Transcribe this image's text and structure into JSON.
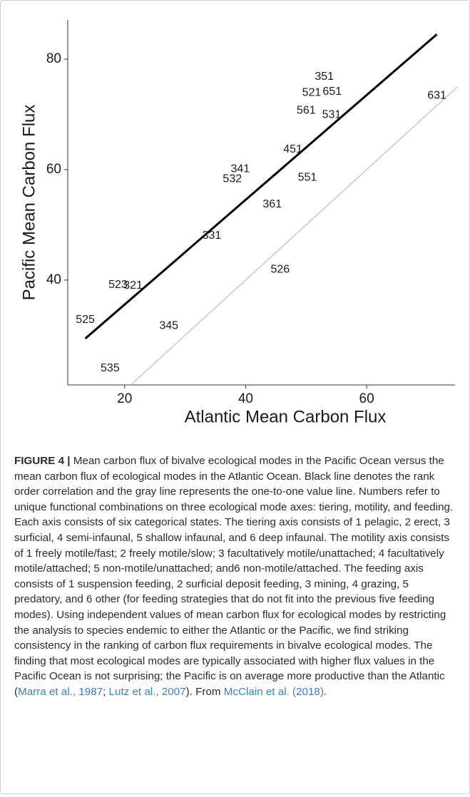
{
  "chart_data": {
    "type": "text-scatter",
    "xlabel": "Atlantic Mean Carbon Flux",
    "ylabel": "Pacific Mean Carbon Flux",
    "xlim": [
      10.6,
      74.6
    ],
    "ylim": [
      21,
      87.1
    ],
    "xticks": [
      20,
      40,
      60
    ],
    "yticks": [
      40,
      60,
      80
    ],
    "points": {
      "labels": [
        "351",
        "521",
        "651",
        "561",
        "531",
        "631",
        "451",
        "341",
        "532",
        "551",
        "361",
        "331",
        "526",
        "523",
        "321",
        "525",
        "345",
        "535"
      ],
      "x": [
        53.0,
        50.9,
        54.3,
        50.0,
        54.2,
        71.6,
        47.8,
        39.1,
        37.8,
        50.2,
        44.4,
        34.4,
        45.7,
        18.9,
        21.4,
        13.5,
        27.3,
        17.6
      ],
      "y": [
        76.8,
        73.9,
        74.1,
        70.7,
        69.9,
        73.4,
        63.6,
        60.1,
        58.3,
        58.5,
        53.7,
        48.0,
        41.9,
        39.1,
        39.0,
        32.8,
        31.7,
        24.0
      ]
    },
    "lines": [
      {
        "color": "#000000",
        "x": [
          13.5,
          71.6
        ],
        "y": [
          29.4,
          84.5
        ]
      },
      {
        "color": "#c8c8c8",
        "x": [
          21,
          75
        ],
        "y": [
          21,
          75
        ]
      }
    ]
  },
  "caption": {
    "label": "FIGURE 4 |",
    "segments": [
      {
        "text": " Mean carbon flux of bivalve ecological modes in the Pacific Ocean versus the mean carbon flux of ecological modes in the Atlantic Ocean. Black line denotes the rank order correlation and the gray line represents the one-to-one value line. Numbers refer to unique functional combinations on three ecological mode axes: tiering, motility, and feeding. Each axis consists of six categorical states. The tiering axis consists of 1 pelagic, 2 erect, 3 surficial, 4 semi-infaunal, 5 shallow infaunal, and 6 deep infaunal. The motility axis consists of 1 freely motile/fast; 2 freely motile/slow; 3 facultatively motile/unattached; 4 facultatively motile/attached; 5 non-motile/unattached; and6 non-motile/attached. The feeding axis consists of 1 suspension feeding, 2 surficial deposit feeding, 3 mining, 4 grazing, 5 predatory, and 6 other (for feeding strategies that do not fit into the previous five feeding modes). Using independent values of mean carbon flux for ecological modes by restricting the analysis to species endemic to either the Atlantic or the Pacific, we find striking consistency in the ranking of carbon flux requirements in bivalve ecological modes. The finding that most ecological modes are typically associated with higher flux values in the Pacific Ocean is not surprising; the Pacific is on average more productive than the Atlantic (",
        "link": false
      },
      {
        "text": "Marra et al., 1987",
        "link": true
      },
      {
        "text": "; ",
        "link": false
      },
      {
        "text": "Lutz et al., 2007",
        "link": true
      },
      {
        "text": "). From ",
        "link": false
      },
      {
        "text": "McClain et al. (2018)",
        "link": true
      },
      {
        "text": ".",
        "link": false
      }
    ]
  }
}
